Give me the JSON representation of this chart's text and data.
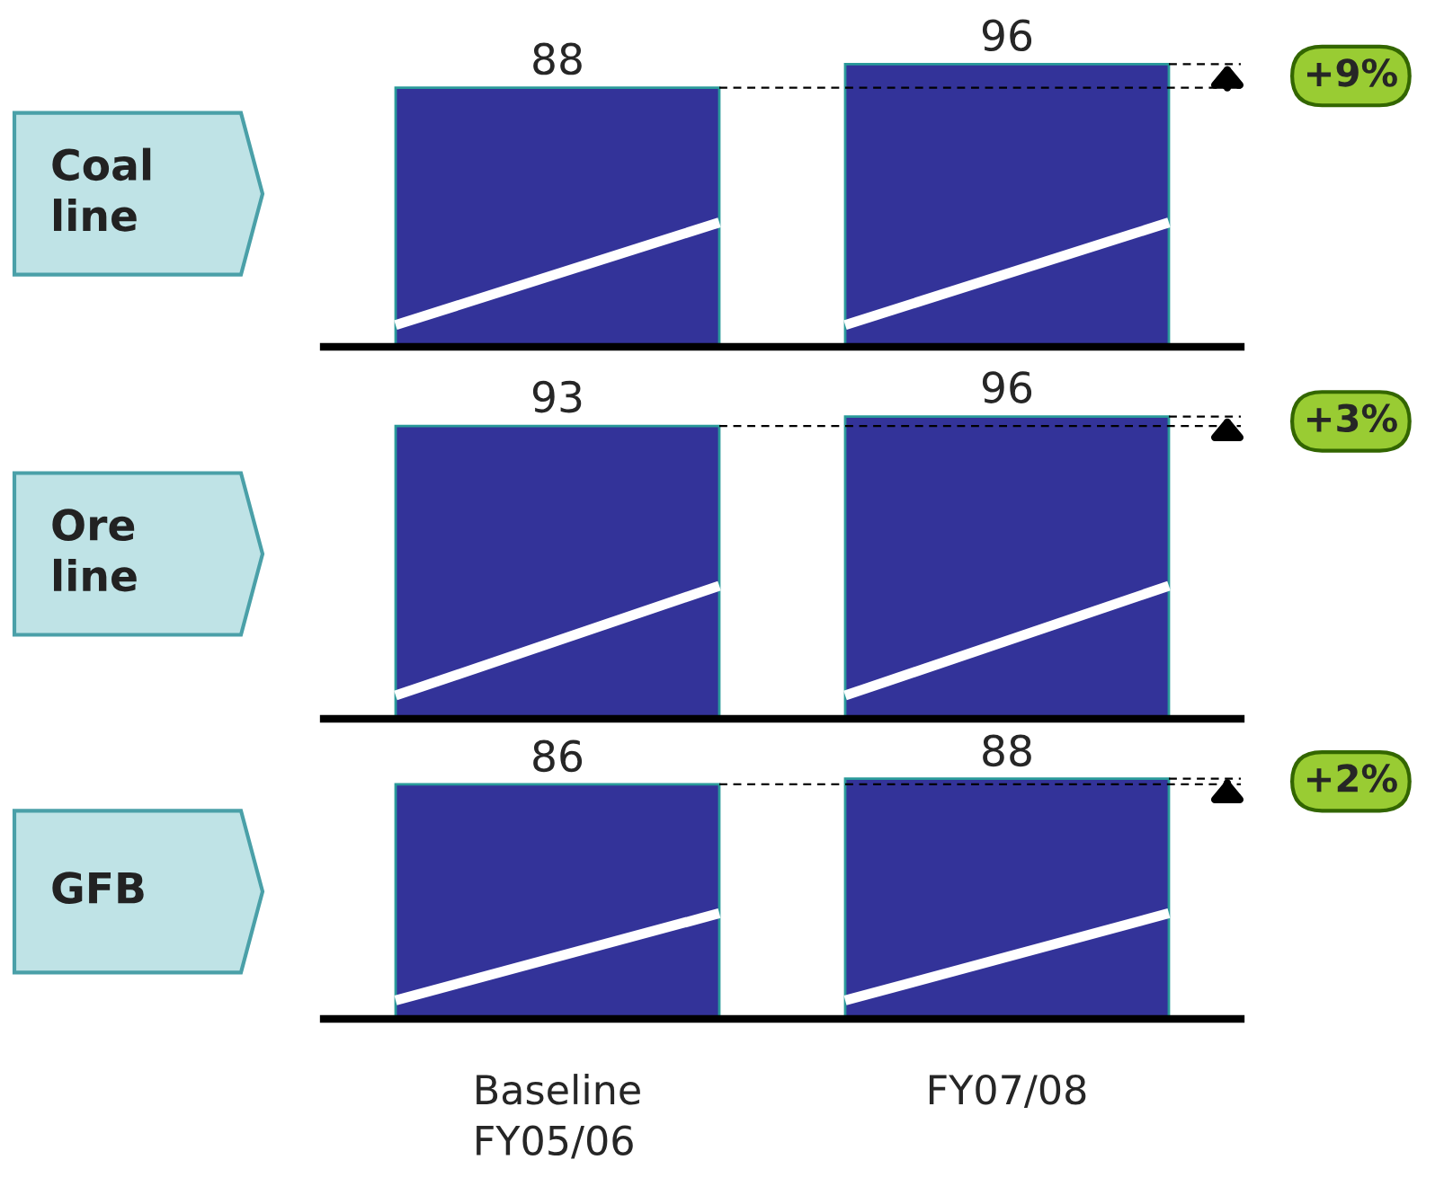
{
  "chart_data": [
    {
      "type": "bar",
      "ylabel": "Coal\nline",
      "categories": [
        null,
        null
      ],
      "values": [
        88,
        96
      ],
      "color": "#333399",
      "data_labels": true,
      "tick_labels": false,
      "annotations": [
        "+9%"
      ]
    },
    {
      "type": "bar",
      "ylabel": "Ore\nline",
      "categories": [
        null,
        null
      ],
      "values": [
        93,
        96
      ],
      "color": "#333399",
      "data_labels": true,
      "tick_labels": false,
      "annotations": [
        "+3%"
      ]
    },
    {
      "type": "bar",
      "ylabel": "GFB",
      "categories": [
        "Baseline\nFY05/06",
        "FY07/08"
      ],
      "values": [
        86,
        88
      ],
      "color": "#333399",
      "data_labels": true,
      "tick_labels": "x",
      "annotations": [
        "+2%"
      ]
    }
  ]
}
